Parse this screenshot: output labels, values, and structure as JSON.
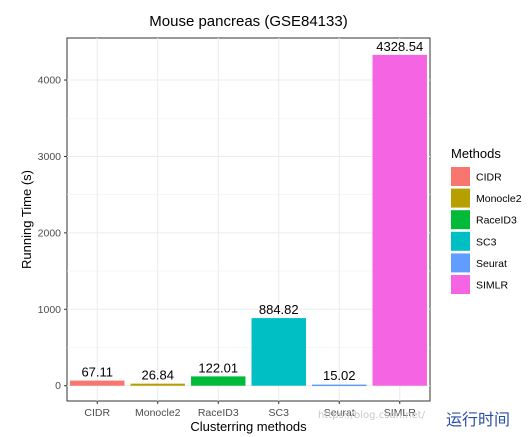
{
  "chart_data": {
    "type": "bar",
    "title": "Mouse pancreas (GSE84133)",
    "xlabel": "Clusterring methods",
    "ylabel": "Running Time (s)",
    "categories": [
      "CIDR",
      "Monocle2",
      "RaceID3",
      "SC3",
      "Seurat",
      "SIMLR"
    ],
    "values": [
      67.11,
      26.84,
      122.01,
      884.82,
      15.02,
      4328.54
    ],
    "data_labels": [
      "67.11",
      "26.84",
      "122.01",
      "884.82",
      "15.02",
      "4328.54"
    ],
    "colors": [
      "#F8766D",
      "#B79F00",
      "#00BA38",
      "#00BFC4",
      "#619CFF",
      "#F564E3"
    ],
    "ylim": [
      -200,
      4550
    ],
    "yticks": [
      0,
      1000,
      2000,
      3000,
      4000
    ],
    "grid": true,
    "legend": {
      "title": "Methods",
      "position": "right",
      "entries": [
        "CIDR",
        "Monocle2",
        "RaceID3",
        "SC3",
        "Seurat",
        "SIMLR"
      ]
    }
  },
  "watermark": "https://blog.csdn.net/",
  "corner_text": "运行时间"
}
